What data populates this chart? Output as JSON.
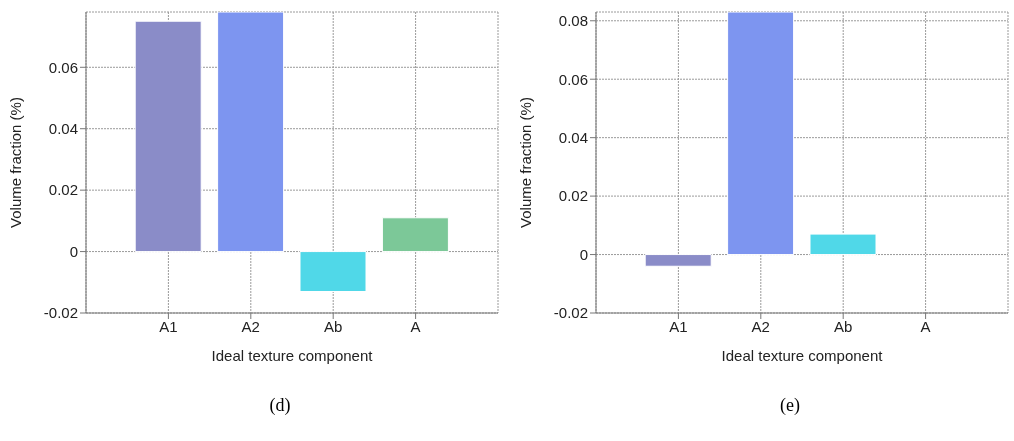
{
  "chart_data": [
    {
      "type": "bar",
      "categories": [
        "A1",
        "A2",
        "Ab",
        "A"
      ],
      "values": [
        0.075,
        0.078,
        -0.013,
        0.011
      ],
      "colors": [
        "#8a8cc8",
        "#7d95f0",
        "#50d8e8",
        "#7cc898"
      ],
      "xlabel": "Ideal texture component",
      "ylabel": "Volume fraction (%)",
      "ylim": [
        -0.02,
        0.078
      ],
      "yticks": [
        -0.02,
        0,
        0.02,
        0.04,
        0.06
      ],
      "grid": true,
      "annotations": [
        "(d)"
      ]
    },
    {
      "type": "bar",
      "categories": [
        "A1",
        "A2",
        "Ab",
        "A"
      ],
      "values": [
        -0.004,
        0.083,
        0.007,
        0
      ],
      "colors": [
        "#8a8cc8",
        "#7d95f0",
        "#50d8e8",
        "#7cc898"
      ],
      "xlabel": "Ideal texture component",
      "ylabel": "Volume fraction (%)",
      "ylim": [
        -0.02,
        0.083
      ],
      "yticks": [
        -0.02,
        0,
        0.02,
        0.04,
        0.06,
        0.08
      ],
      "grid": true,
      "annotations": [
        "(e)"
      ]
    }
  ]
}
